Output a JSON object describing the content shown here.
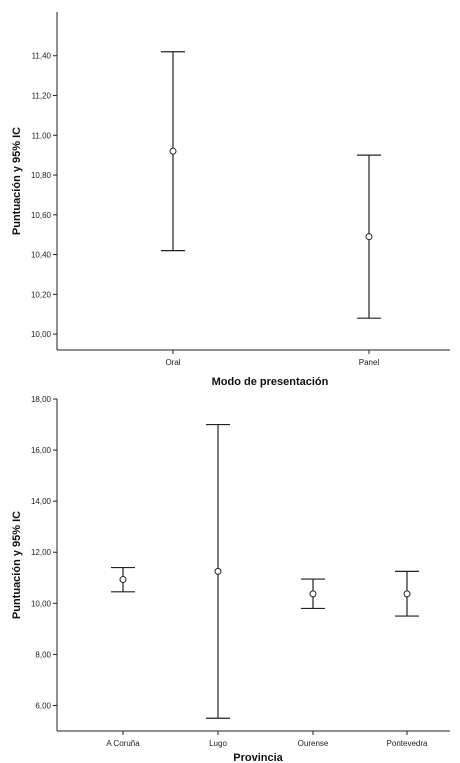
{
  "chart_data": [
    {
      "type": "errorbar",
      "ylabel": "Puntuación y 95% IC",
      "xlabel": "Modo de presentación",
      "ylim": [
        9.92,
        11.62
      ],
      "yticks": [
        "10,00",
        "10,20",
        "10,40",
        "10,60",
        "10,80",
        "11,00",
        "11,20",
        "11,40"
      ],
      "ytick_values": [
        10.0,
        10.2,
        10.4,
        10.6,
        10.8,
        11.0,
        11.2,
        11.4
      ],
      "categories": [
        "Oral",
        "Panel"
      ],
      "points": [
        {
          "category": "Oral",
          "mean": 10.92,
          "lower": 10.42,
          "upper": 11.42
        },
        {
          "category": "Panel",
          "mean": 10.49,
          "lower": 10.08,
          "upper": 10.9
        }
      ]
    },
    {
      "type": "errorbar",
      "ylabel": "Puntuación y 95% IC",
      "xlabel": "Provincia",
      "ylim": [
        5.0,
        18.0
      ],
      "yticks": [
        "6,00",
        "8,00",
        "10,00",
        "12,00",
        "14,00",
        "16,00",
        "18,00"
      ],
      "ytick_values": [
        6.0,
        8.0,
        10.0,
        12.0,
        14.0,
        16.0,
        18.0
      ],
      "categories": [
        "A Coruña",
        "Lugo",
        "Ourense",
        "Pontevedra"
      ],
      "points": [
        {
          "category": "A Coruña",
          "mean": 10.93,
          "lower": 10.45,
          "upper": 11.4
        },
        {
          "category": "Lugo",
          "mean": 11.25,
          "lower": 5.5,
          "upper": 17.0
        },
        {
          "category": "Ourense",
          "mean": 10.37,
          "lower": 9.8,
          "upper": 10.95
        },
        {
          "category": "Pontevedra",
          "mean": 10.37,
          "lower": 9.5,
          "upper": 11.25
        }
      ]
    }
  ]
}
